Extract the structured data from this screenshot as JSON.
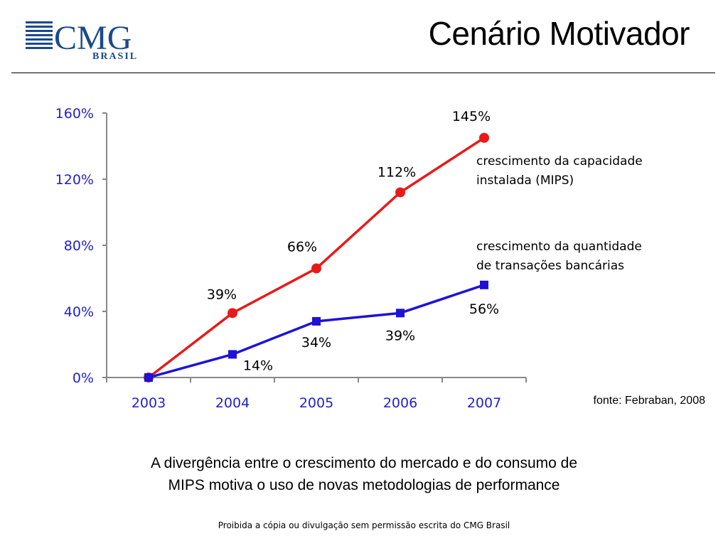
{
  "header": {
    "title": "Cenário Motivador",
    "logo_text": "CMG",
    "logo_subtext": "BRASIL"
  },
  "chart_data": {
    "type": "line",
    "x": [
      "2003",
      "2004",
      "2005",
      "2006",
      "2007"
    ],
    "ylim": [
      0,
      160
    ],
    "yticks": [
      "0%",
      "40%",
      "80%",
      "120%",
      "160%"
    ],
    "ytick_values": [
      0,
      40,
      80,
      120,
      160
    ],
    "grid": false,
    "series": [
      {
        "name": "crescimento da capacidade instalada (MIPS)",
        "name_lines": [
          "crescimento da capacidade",
          "instalada (MIPS)"
        ],
        "color": "#e81a1a",
        "marker": "circle",
        "values": [
          0,
          39,
          66,
          112,
          145
        ],
        "labels": [
          "",
          "39%",
          "66%",
          "112%",
          "145%"
        ]
      },
      {
        "name": "crescimento da quantidade de transações bancárias",
        "name_lines": [
          "crescimento da quantidade",
          "de transações bancárias"
        ],
        "color": "#1f12d6",
        "marker": "square",
        "values": [
          0,
          14,
          34,
          39,
          56
        ],
        "labels": [
          "",
          "14%",
          "34%",
          "39%",
          "56%"
        ]
      }
    ],
    "source": "fonte: Febraban, 2008"
  },
  "caption": {
    "line1": "A divergência entre o crescimento do mercado e do consumo de",
    "line2": "MIPS motiva o uso de novas metodologias de performance"
  },
  "footer": "Proibida a cópia ou divulgação sem permissão escrita do CMG Brasil",
  "colors": {
    "logo_blue": "#1b4a8a",
    "axis_blue": "#1f1fd0"
  }
}
